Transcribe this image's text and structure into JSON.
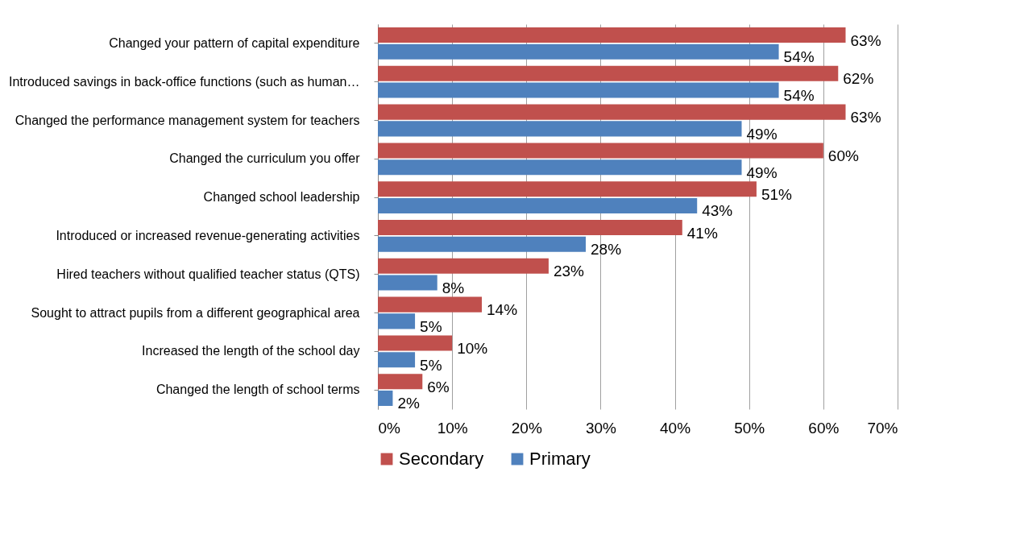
{
  "chart_data": {
    "type": "bar",
    "orientation": "horizontal",
    "categories": [
      "Changed your pattern of capital expenditure",
      "Introduced savings in back-office functions (such as human…",
      "Changed the performance management system for teachers",
      "Changed the  curriculum you offer",
      "Changed school leadership",
      "Introduced or increased revenue-generating activities",
      "Hired teachers without qualified teacher status (QTS)",
      "Sought to attract pupils from a different geographical area",
      "Increased the length of the school day",
      "Changed the length of  school terms"
    ],
    "series": [
      {
        "name": "Secondary",
        "color": "#c0504d",
        "values": [
          63,
          62,
          63,
          60,
          51,
          41,
          23,
          14,
          10,
          6
        ],
        "value_labels": [
          "63%",
          "62%",
          "63%",
          "60%",
          "51%",
          "41%",
          "23%",
          "14%",
          "10%",
          "6%"
        ]
      },
      {
        "name": "Primary",
        "color": "#4f81bd",
        "values": [
          54,
          54,
          49,
          49,
          43,
          28,
          8,
          5,
          5,
          2
        ],
        "value_labels": [
          "54%",
          "54%",
          "49%",
          "49%",
          "43%",
          "28%",
          "8%",
          "5%",
          "5%",
          "2%"
        ]
      }
    ],
    "xlim": [
      0,
      70
    ],
    "xticks": [
      {
        "value": 0,
        "label": "0%"
      },
      {
        "value": 10,
        "label": "10%"
      },
      {
        "value": 20,
        "label": "20%"
      },
      {
        "value": 30,
        "label": "30%"
      },
      {
        "value": 40,
        "label": "40%"
      },
      {
        "value": 50,
        "label": "50%"
      },
      {
        "value": 60,
        "label": "60%"
      },
      {
        "value": 70,
        "label": "70%"
      }
    ],
    "grid": "x",
    "legend": "bottom"
  }
}
